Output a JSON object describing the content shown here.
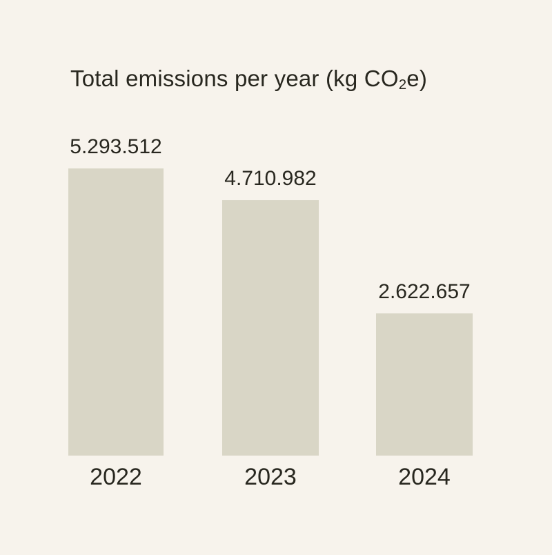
{
  "page": {
    "background_color": "#f7f3ec",
    "text_color": "#28271f"
  },
  "chart": {
    "title": {
      "prefix": "Total emissions per year (kg CO",
      "subscript": "2",
      "suffix": "e)"
    }
  },
  "chart_data": {
    "type": "bar",
    "title": "Total emissions per year (kg CO2e)",
    "categories": [
      "2022",
      "2023",
      "2024"
    ],
    "values": [
      5293512,
      4710982,
      2622657
    ],
    "value_labels": [
      "5.293.512",
      "4.710.982",
      "2.622.657"
    ],
    "xlabel": "",
    "ylabel": "",
    "ylim": [
      0,
      5293512
    ],
    "grid": false,
    "legend": false,
    "bar_color": "#d9d6c6",
    "background_color": "#f7f3ec",
    "text_color": "#28271f"
  }
}
